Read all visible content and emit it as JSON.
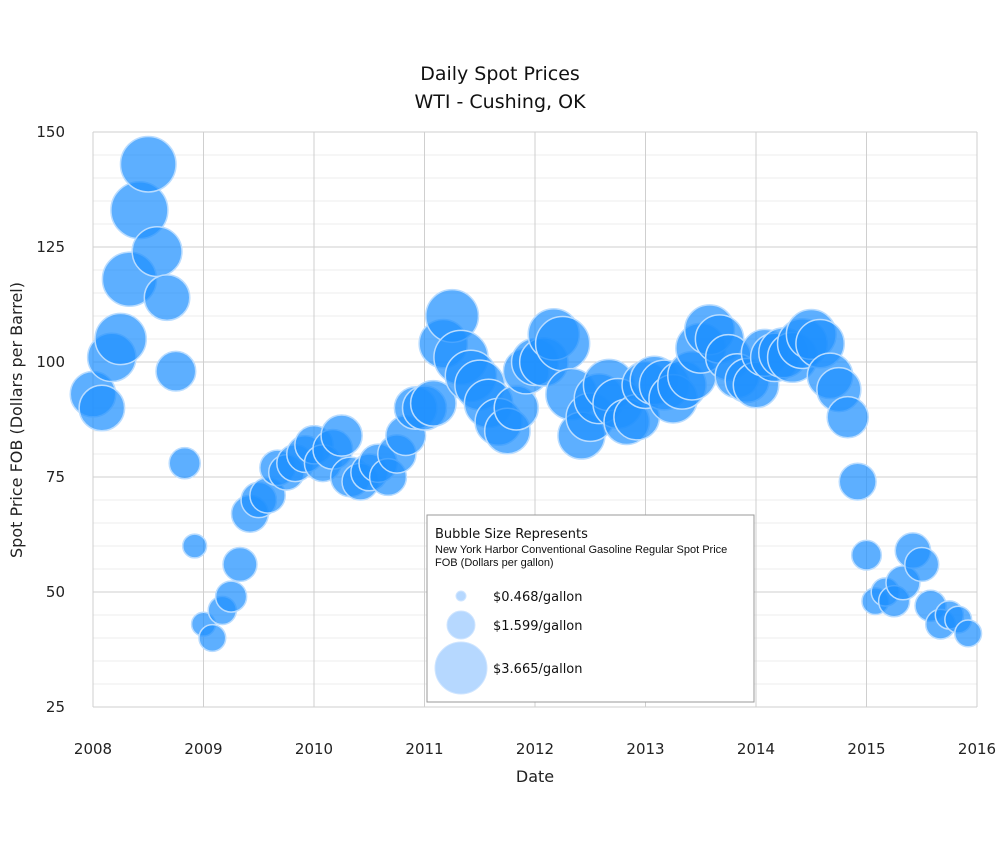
{
  "chart_data": {
    "type": "scatter",
    "title": "Daily Spot Prices",
    "subtitle": "WTI - Cushing, OK",
    "xlabel": "Date",
    "ylabel": "Spot Price FOB (Dollars per Barrel)",
    "xlim": [
      2008,
      2016
    ],
    "ylim": [
      25,
      150
    ],
    "x_ticks": [
      "2008",
      "2009",
      "2010",
      "2011",
      "2012",
      "2013",
      "2014",
      "2015",
      "2016"
    ],
    "y_ticks": [
      "25",
      "50",
      "75",
      "100",
      "125",
      "150"
    ],
    "grid": true,
    "bubble_color": "#1e90ff",
    "legend": {
      "title": "Bubble Size Represents",
      "subtitle_line1": "New York Harbor Conventional Gasoline Regular Spot Price",
      "subtitle_line2": "FOB (Dollars per gallon)",
      "placement": "bottom-center",
      "items": [
        {
          "label": "$0.468/gallon",
          "size_value": 0.468
        },
        {
          "label": "$1.599/gallon",
          "size_value": 1.599
        },
        {
          "label": "$3.665/gallon",
          "size_value": 3.665
        }
      ]
    },
    "series": [
      {
        "x": [
          2008.0,
          2008.08,
          2008.17,
          2008.25,
          2008.33,
          2008.42,
          2008.5,
          2008.58,
          2008.67,
          2008.75,
          2008.83,
          2008.92,
          2009.0,
          2009.08,
          2009.17,
          2009.25,
          2009.33,
          2009.42,
          2009.5,
          2009.58,
          2009.67,
          2009.75,
          2009.83,
          2009.92,
          2010.0,
          2010.08,
          2010.17,
          2010.25,
          2010.33,
          2010.42,
          2010.5,
          2010.58,
          2010.67,
          2010.75,
          2010.83,
          2010.92,
          2011.0,
          2011.08,
          2011.17,
          2011.25,
          2011.33,
          2011.42,
          2011.5,
          2011.58,
          2011.67,
          2011.75,
          2011.83,
          2011.92,
          2012.0,
          2012.08,
          2012.17,
          2012.25,
          2012.33,
          2012.42,
          2012.5,
          2012.58,
          2012.67,
          2012.75,
          2012.83,
          2012.92,
          2013.0,
          2013.08,
          2013.17,
          2013.25,
          2013.33,
          2013.42,
          2013.5,
          2013.58,
          2013.67,
          2013.75,
          2013.83,
          2013.92,
          2014.0,
          2014.08,
          2014.17,
          2014.25,
          2014.33,
          2014.42,
          2014.5,
          2014.58,
          2014.67,
          2014.75,
          2014.83,
          2014.92,
          2015.0,
          2015.08,
          2015.17,
          2015.25,
          2015.33,
          2015.42,
          2015.5,
          2015.58,
          2015.67,
          2015.75,
          2015.83,
          2015.92
        ],
        "y": [
          93,
          90,
          101,
          105,
          118,
          133,
          143,
          124,
          114,
          98,
          78,
          60,
          43,
          40,
          46,
          49,
          56,
          67,
          70,
          71,
          77,
          76,
          78,
          80,
          82,
          78,
          81,
          84,
          75,
          74,
          76,
          78,
          75,
          80,
          84,
          90,
          90,
          91,
          104,
          110,
          101,
          97,
          95,
          91,
          87,
          85,
          90,
          98,
          100,
          100,
          106,
          104,
          93,
          84,
          88,
          92,
          95,
          91,
          87,
          88,
          95,
          96,
          95,
          92,
          95,
          97,
          103,
          107,
          105,
          101,
          97,
          96,
          95,
          102,
          101,
          102,
          101,
          104,
          106,
          104,
          97,
          94,
          88,
          74,
          58,
          48,
          50,
          48,
          52,
          59,
          56,
          47,
          43,
          45,
          44,
          41
        ],
        "size": [
          2.6,
          2.6,
          2.8,
          3.0,
          3.2,
          3.4,
          3.3,
          2.9,
          2.6,
          2.2,
          1.6,
          1.1,
          1.1,
          1.3,
          1.4,
          1.6,
          1.8,
          2.0,
          1.9,
          1.9,
          1.9,
          1.9,
          2.0,
          2.0,
          2.1,
          2.0,
          2.2,
          2.3,
          2.2,
          2.0,
          2.0,
          2.1,
          2.0,
          2.1,
          2.2,
          2.4,
          2.5,
          2.6,
          2.8,
          3.1,
          3.2,
          3.0,
          2.9,
          2.8,
          2.7,
          2.6,
          2.5,
          2.6,
          2.7,
          2.8,
          3.0,
          3.2,
          3.0,
          2.7,
          2.8,
          2.9,
          3.0,
          2.9,
          2.6,
          2.6,
          2.7,
          2.8,
          2.9,
          2.8,
          2.8,
          2.8,
          2.9,
          2.9,
          2.8,
          2.6,
          2.5,
          2.5,
          2.6,
          2.7,
          2.8,
          2.9,
          2.9,
          2.9,
          2.9,
          2.8,
          2.6,
          2.5,
          2.3,
          2.0,
          1.5,
          1.3,
          1.4,
          1.6,
          1.8,
          1.9,
          1.8,
          1.6,
          1.5,
          1.4,
          1.3,
          1.3
        ]
      }
    ]
  }
}
